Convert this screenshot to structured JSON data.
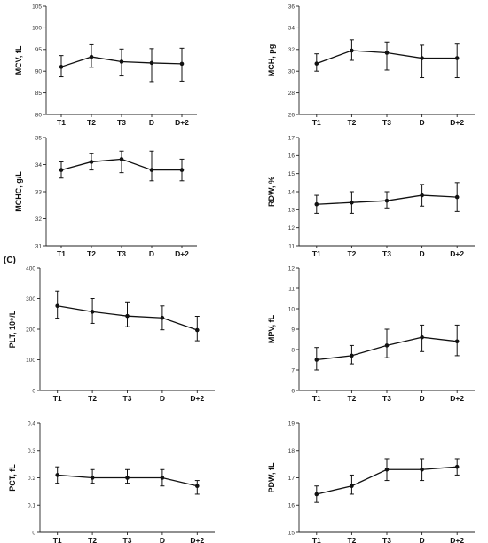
{
  "panel_letter": "(C)",
  "chart_data": [
    {
      "type": "line",
      "ylabel": "MCV, fL",
      "categories": [
        "T1",
        "T2",
        "T3",
        "D",
        "D+2"
      ],
      "ylim": [
        80,
        105
      ],
      "yticks": [
        80,
        85,
        90,
        95,
        100,
        105
      ],
      "values": [
        91,
        93.3,
        92.2,
        91.9,
        91.7
      ],
      "err_low": [
        88.7,
        90.9,
        88.9,
        87.6,
        87.7
      ],
      "err_high": [
        93.6,
        96.1,
        95.1,
        95.2,
        95.3
      ]
    },
    {
      "type": "line",
      "ylabel": "MCH, pg",
      "categories": [
        "T1",
        "T2",
        "T3",
        "D",
        "D+2"
      ],
      "ylim": [
        26,
        36
      ],
      "yticks": [
        26,
        28,
        30,
        32,
        34,
        36
      ],
      "values": [
        30.7,
        31.9,
        31.7,
        31.2,
        31.2
      ],
      "err_low": [
        30.0,
        31.0,
        30.1,
        29.4,
        29.4
      ],
      "err_high": [
        31.6,
        32.9,
        32.7,
        32.4,
        32.5
      ]
    },
    {
      "type": "line",
      "ylabel": "MCHC, g/L",
      "categories": [
        "T1",
        "T2",
        "T3",
        "D",
        "D+2"
      ],
      "ylim": [
        31,
        35
      ],
      "yticks": [
        31,
        32,
        33,
        34,
        35
      ],
      "values": [
        33.8,
        34.1,
        34.2,
        33.8,
        33.8
      ],
      "err_low": [
        33.5,
        33.8,
        33.7,
        33.4,
        33.4
      ],
      "err_high": [
        34.1,
        34.4,
        34.5,
        34.5,
        34.2
      ]
    },
    {
      "type": "line",
      "ylabel": "RDW, %",
      "categories": [
        "T1",
        "T2",
        "T3",
        "D",
        "D+2"
      ],
      "ylim": [
        11,
        17
      ],
      "yticks": [
        11,
        12,
        13,
        14,
        15,
        16,
        17
      ],
      "values": [
        13.3,
        13.4,
        13.5,
        13.8,
        13.7
      ],
      "err_low": [
        12.8,
        12.8,
        13.1,
        13.2,
        12.9
      ],
      "err_high": [
        13.8,
        14.0,
        14.0,
        14.4,
        14.5
      ]
    },
    {
      "type": "line",
      "ylabel": "PLT, 10⁹/L",
      "categories": [
        "T1",
        "T2",
        "T3",
        "D",
        "D+2"
      ],
      "ylim": [
        0,
        400
      ],
      "yticks": [
        0,
        100,
        200,
        300,
        400
      ],
      "values": [
        276,
        257,
        243,
        237,
        197
      ],
      "err_low": [
        236,
        219,
        208,
        198,
        162
      ],
      "err_high": [
        324,
        300,
        289,
        276,
        242
      ]
    },
    {
      "type": "line",
      "ylabel": "MPV, fL",
      "categories": [
        "T1",
        "T2",
        "T3",
        "D",
        "D+2"
      ],
      "ylim": [
        6,
        12
      ],
      "yticks": [
        6,
        7,
        8,
        9,
        10,
        11,
        12
      ],
      "values": [
        7.5,
        7.7,
        8.2,
        8.6,
        8.4
      ],
      "err_low": [
        7.0,
        7.3,
        7.6,
        7.9,
        7.7
      ],
      "err_high": [
        8.1,
        8.2,
        9.0,
        9.2,
        9.2
      ]
    },
    {
      "type": "line",
      "ylabel": "PCT, fL",
      "categories": [
        "T1",
        "T2",
        "T3",
        "D",
        "D+2"
      ],
      "ylim": [
        0,
        0.4
      ],
      "yticks": [
        0,
        0.1,
        0.2,
        0.3,
        0.4
      ],
      "values": [
        0.21,
        0.2,
        0.2,
        0.2,
        0.17
      ],
      "err_low": [
        0.18,
        0.18,
        0.18,
        0.17,
        0.14
      ],
      "err_high": [
        0.24,
        0.23,
        0.23,
        0.23,
        0.19
      ]
    },
    {
      "type": "line",
      "ylabel": "PDW, fL",
      "categories": [
        "T1",
        "T2",
        "T3",
        "D",
        "D+2"
      ],
      "ylim": [
        15,
        19
      ],
      "yticks": [
        15,
        16,
        17,
        18,
        19
      ],
      "values": [
        16.4,
        16.7,
        17.3,
        17.3,
        17.4
      ],
      "err_low": [
        16.1,
        16.4,
        16.9,
        16.9,
        17.1
      ],
      "err_high": [
        16.7,
        17.1,
        17.7,
        17.7,
        17.7
      ]
    }
  ]
}
